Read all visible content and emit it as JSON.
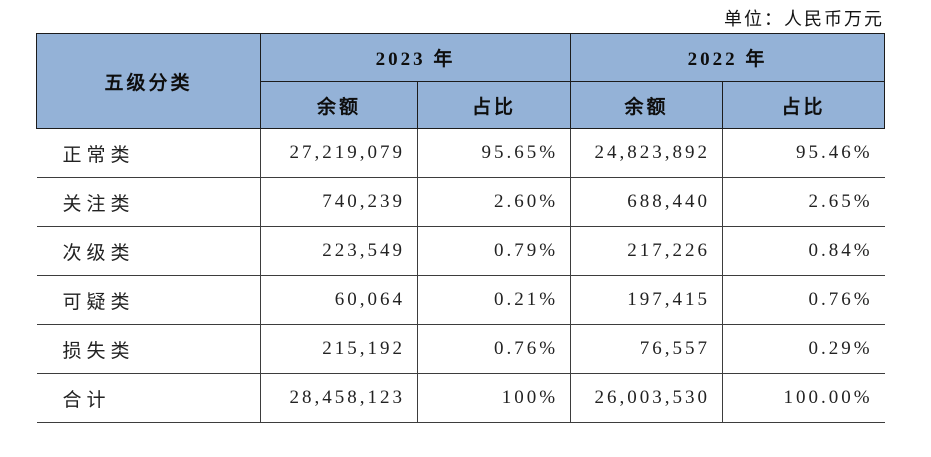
{
  "unit_label": "单位：人民币万元",
  "table": {
    "corner_header": "五级分类",
    "year_groups": [
      {
        "label": "2023 年",
        "sub_headers": [
          "余额",
          "占比"
        ]
      },
      {
        "label": "2022 年",
        "sub_headers": [
          "余额",
          "占比"
        ]
      }
    ],
    "rows": [
      {
        "category": "正常类",
        "values": [
          "27,219,079",
          "95.65%",
          "24,823,892",
          "95.46%"
        ]
      },
      {
        "category": "关注类",
        "values": [
          "740,239",
          "2.60%",
          "688,440",
          "2.65%"
        ]
      },
      {
        "category": "次级类",
        "values": [
          "223,549",
          "0.79%",
          "217,226",
          "0.84%"
        ]
      },
      {
        "category": "可疑类",
        "values": [
          "60,064",
          "0.21%",
          "197,415",
          "0.76%"
        ]
      },
      {
        "category": "损失类",
        "values": [
          "215,192",
          "0.76%",
          "76,557",
          "0.29%"
        ]
      },
      {
        "category": "合计",
        "values": [
          "28,458,123",
          "100%",
          "26,003,530",
          "100.00%"
        ]
      }
    ],
    "colors": {
      "header_bg": "#94B2D7",
      "border": "#3d3d3d",
      "text": "#222222"
    }
  }
}
